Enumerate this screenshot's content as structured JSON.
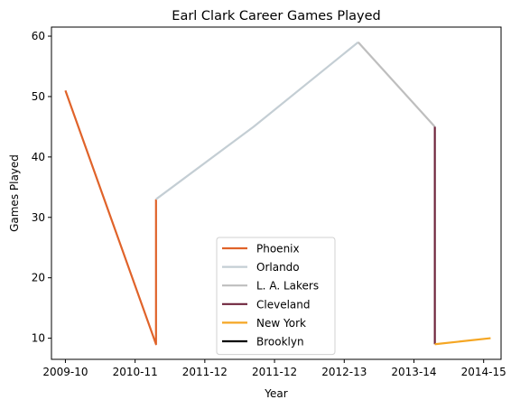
{
  "chart_data": {
    "type": "line",
    "title": "Earl Clark Career Games Played",
    "xlabel": "Year",
    "ylabel": "Games Played",
    "categories": [
      "2009-10",
      "2010-11",
      "2011-12",
      "2011-12",
      "2012-13",
      "2013-14",
      "2014-15"
    ],
    "xlim": [
      -0.2,
      6.25
    ],
    "ylim": [
      6.5,
      61.5
    ],
    "yticks": [
      10,
      20,
      30,
      40,
      50,
      60
    ],
    "grid": false,
    "legend_position": "lower-center",
    "series": [
      {
        "name": "Phoenix",
        "color": "#e0632a",
        "points": [
          [
            0,
            51
          ],
          [
            1.3,
            9
          ],
          [
            1.3,
            33
          ]
        ]
      },
      {
        "name": "Orlando",
        "color": "#c4ced4",
        "points": [
          [
            1.3,
            33
          ],
          [
            2.7,
            45
          ],
          [
            4.2,
            59
          ]
        ]
      },
      {
        "name": "L. A. Lakers",
        "color": "#bebebe",
        "points": [
          [
            4.2,
            59
          ],
          [
            5.3,
            45
          ]
        ]
      },
      {
        "name": "Cleveland",
        "color": "#6f263d",
        "points": [
          [
            5.3,
            45
          ],
          [
            5.3,
            9
          ]
        ]
      },
      {
        "name": "New York",
        "color": "#f5a623",
        "points": [
          [
            5.3,
            9
          ],
          [
            6.1,
            10
          ]
        ]
      },
      {
        "name": "Brooklyn",
        "color": "#000000",
        "points": []
      }
    ]
  }
}
